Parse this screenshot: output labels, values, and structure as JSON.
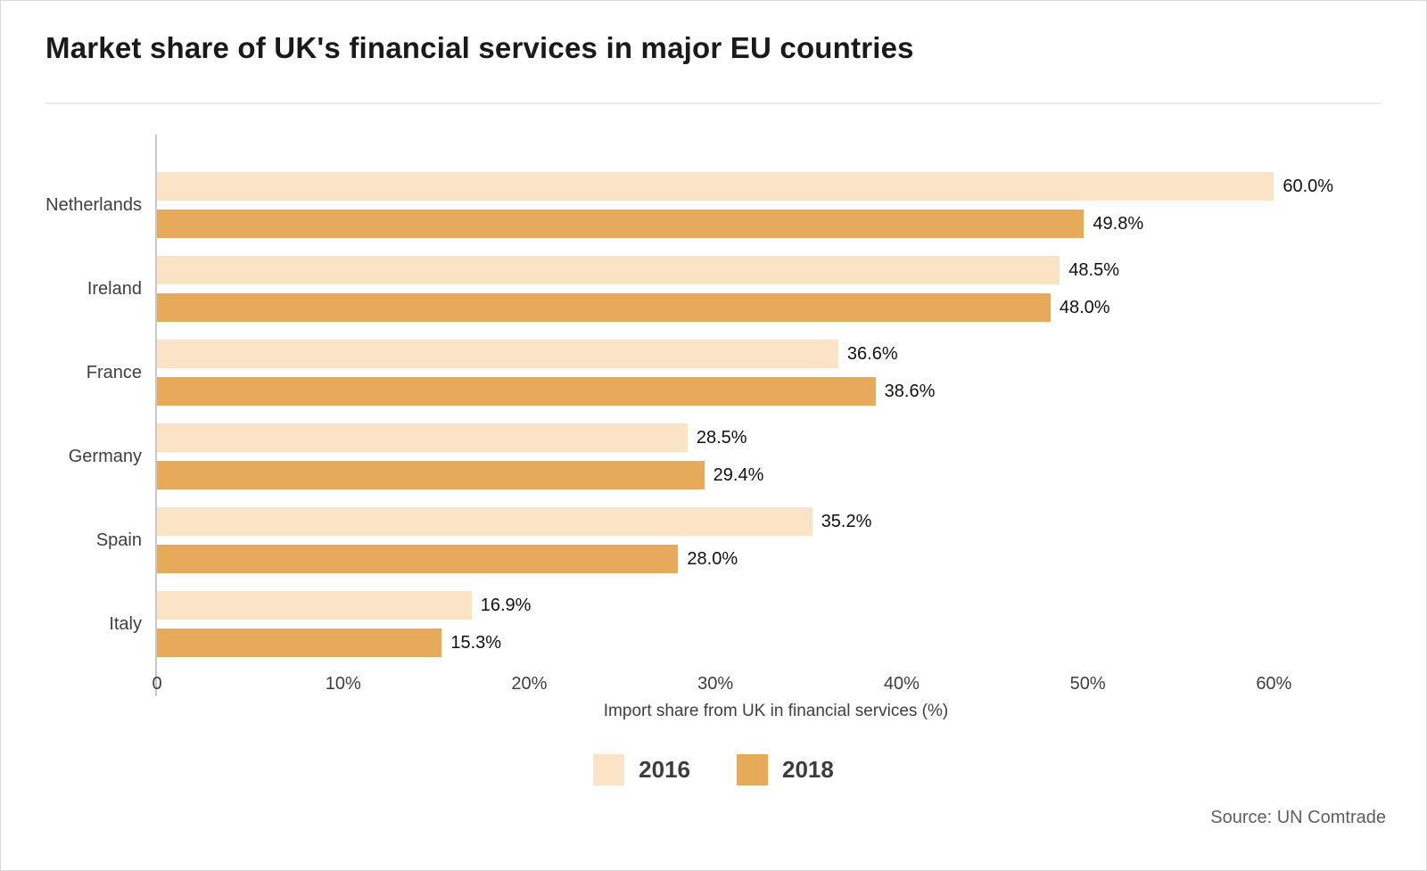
{
  "title": "Market share of UK's financial services in major EU countries",
  "source": "Source: UN Comtrade",
  "legend": {
    "items": [
      {
        "label": "2016",
        "color": "#FBE4C6"
      },
      {
        "label": "2018",
        "color": "#E6AA5A"
      }
    ]
  },
  "chart_data": {
    "type": "bar",
    "orientation": "horizontal",
    "title": "Market share of UK's financial services in major EU countries",
    "xlabel": "Import share from UK in financial services (%)",
    "categories": [
      "Netherlands",
      "Ireland",
      "France",
      "Germany",
      "Spain",
      "Italy"
    ],
    "series": [
      {
        "name": "2016",
        "color": "#FBE4C6",
        "values": [
          60.0,
          48.5,
          36.6,
          28.5,
          35.2,
          16.9
        ],
        "labels": [
          "60.0%",
          "48.5%",
          "36.6%",
          "28.5%",
          "35.2%",
          "16.9%"
        ]
      },
      {
        "name": "2018",
        "color": "#E6AA5A",
        "values": [
          49.8,
          48.0,
          38.6,
          29.4,
          28.0,
          15.3
        ],
        "labels": [
          "49.8%",
          "48.0%",
          "38.6%",
          "29.4%",
          "28.0%",
          "15.3%"
        ]
      }
    ],
    "x_ticks": [
      {
        "value": 0,
        "label": "0"
      },
      {
        "value": 10,
        "label": "10%"
      },
      {
        "value": 20,
        "label": "20%"
      },
      {
        "value": 30,
        "label": "30%"
      },
      {
        "value": 40,
        "label": "40%"
      },
      {
        "value": 50,
        "label": "50%"
      },
      {
        "value": 60,
        "label": "60%"
      }
    ],
    "xlim": [
      0,
      66.5
    ],
    "grid": false,
    "legend_position": "bottom",
    "source": "Source: UN Comtrade"
  }
}
